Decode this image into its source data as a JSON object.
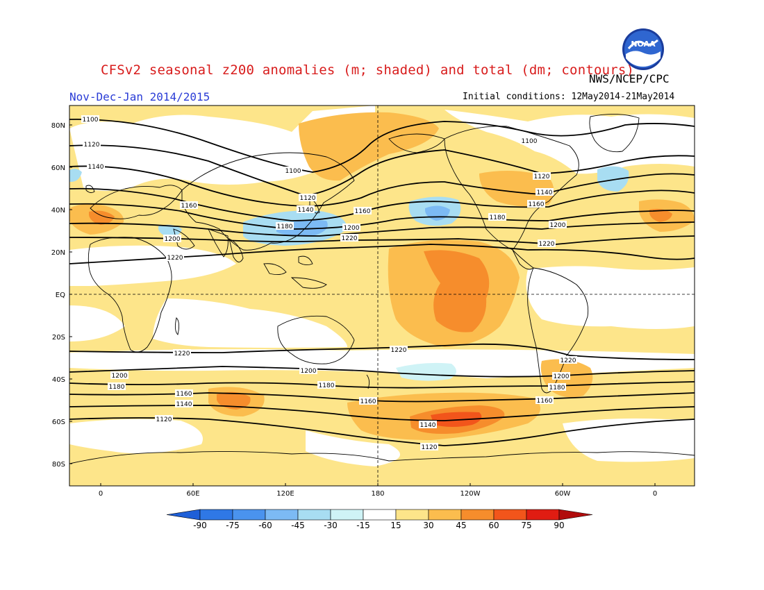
{
  "header": {
    "title": "CFSv2 seasonal z200 anomalies (m; shaded) and total (dm; contours)",
    "agency": "NWS/NCEP/CPC",
    "period": "Nov-Dec-Jan 2014/2015",
    "initial_conditions": "Initial conditions: 12May2014-21May2014",
    "logo_text": "NOAA"
  },
  "axes": {
    "lat_labels": [
      "80N",
      "60N",
      "40N",
      "20N",
      "EQ",
      "20S",
      "40S",
      "60S",
      "80S"
    ],
    "lon_labels": [
      "0",
      "60E",
      "120E",
      "180",
      "120W",
      "60W",
      "0"
    ]
  },
  "colorbar": {
    "labels": [
      "-90",
      "-75",
      "-60",
      "-45",
      "-30",
      "-15",
      "15",
      "30",
      "45",
      "60",
      "75",
      "90"
    ],
    "colors": [
      "#1e5fd8",
      "#2f78e6",
      "#4a93ee",
      "#7cbaf4",
      "#a8ddf2",
      "#cff3f6",
      "#ffffff",
      "#fde58a",
      "#fbbd4e",
      "#f68d2c",
      "#f2551b",
      "#e01c12",
      "#b10c0c"
    ]
  },
  "contour_labels": [
    {
      "text": "1100"
    },
    {
      "text": "1120"
    },
    {
      "text": "1140"
    },
    {
      "text": "1160"
    },
    {
      "text": "1180"
    },
    {
      "text": "1200"
    },
    {
      "text": "1220"
    },
    {
      "text": "1100"
    },
    {
      "text": "1120"
    },
    {
      "text": "1140"
    },
    {
      "text": "1160"
    },
    {
      "text": "1180"
    },
    {
      "text": "1200"
    },
    {
      "text": "1220"
    },
    {
      "text": "1100"
    },
    {
      "text": "1120"
    },
    {
      "text": "1140"
    },
    {
      "text": "1160"
    },
    {
      "text": "1180"
    },
    {
      "text": "1200"
    },
    {
      "text": "1220"
    },
    {
      "text": "1220"
    },
    {
      "text": "1200"
    },
    {
      "text": "1180"
    },
    {
      "text": "1160"
    },
    {
      "text": "1140"
    },
    {
      "text": "1120"
    },
    {
      "text": "1220"
    },
    {
      "text": "1200"
    },
    {
      "text": "1180"
    },
    {
      "text": "1160"
    },
    {
      "text": "1140"
    },
    {
      "text": "1120"
    },
    {
      "text": "1220"
    },
    {
      "text": "1200"
    },
    {
      "text": "1180"
    },
    {
      "text": "1160"
    }
  ]
}
